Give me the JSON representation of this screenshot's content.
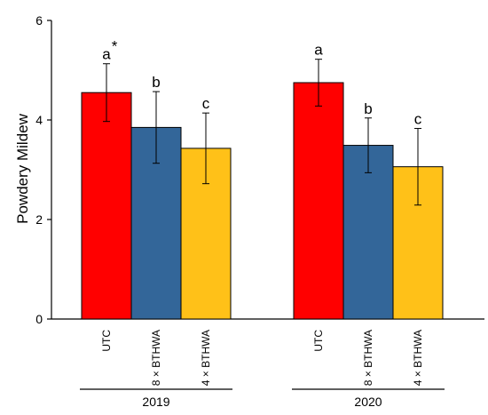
{
  "chart_data": {
    "type": "bar",
    "ylabel": "Powdery Mildew",
    "ylim": [
      0,
      6
    ],
    "yticks": [
      "0",
      "2",
      "4",
      "6"
    ],
    "categories": [
      "UTC",
      "8 × BTHWA",
      "4 × BTHWA"
    ],
    "colors": [
      "#ff0000",
      "#336699",
      "#ffc118"
    ],
    "groups": [
      {
        "label": "2019",
        "bars": [
          {
            "value": 4.55,
            "err": 0.58,
            "sig": "a",
            "sup": "*"
          },
          {
            "value": 3.85,
            "err": 0.72,
            "sig": "b",
            "sup": ""
          },
          {
            "value": 3.43,
            "err": 0.71,
            "sig": "c",
            "sup": ""
          }
        ]
      },
      {
        "label": "2020",
        "bars": [
          {
            "value": 4.75,
            "err": 0.47,
            "sig": "a",
            "sup": ""
          },
          {
            "value": 3.49,
            "err": 0.55,
            "sig": "b",
            "sup": ""
          },
          {
            "value": 3.06,
            "err": 0.77,
            "sig": "c",
            "sup": ""
          }
        ]
      }
    ]
  }
}
